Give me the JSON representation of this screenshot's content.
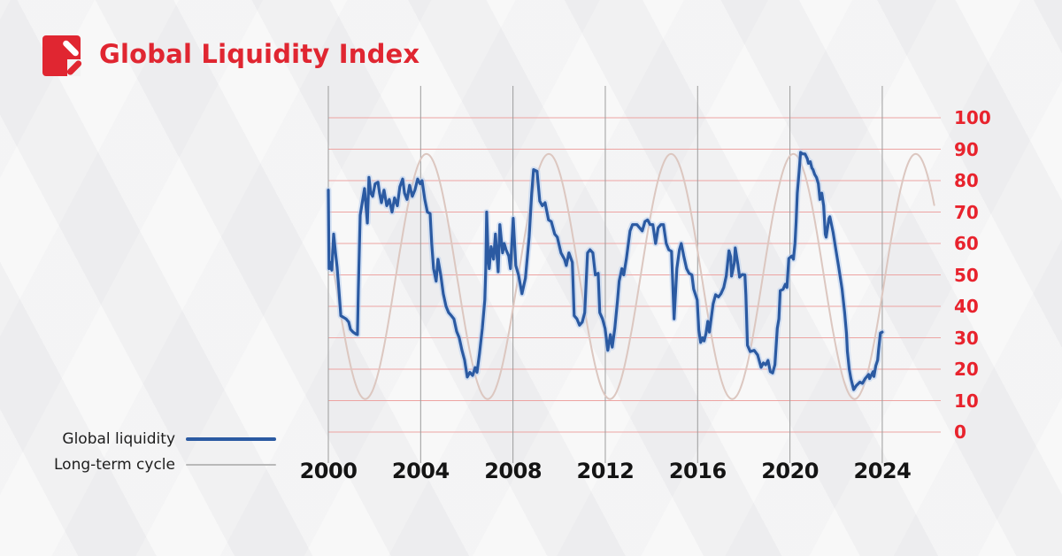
{
  "header": {
    "title": "Global Liquidity Index",
    "logo": "red-square-with-slash-logo"
  },
  "colors": {
    "accent_red": "#e02631",
    "axis_label_red": "#e8232d",
    "grid_red": "#eda4a2",
    "grid_gray": "#9c9c9c",
    "liquidity_blue": "#2b5aa2",
    "liquidity_halo": "#b6cdf0",
    "cycle_tan": "#dcc7c0",
    "legend_gray": "#b9b9b9",
    "text_dark": "#1d1d1d",
    "background": "#f1f1f2"
  },
  "legend": {
    "items": [
      {
        "label": "Global liquidity",
        "series_key": "global_liquidity",
        "line_color": "#2b5aa2",
        "line_thickness": 4
      },
      {
        "label": "Long-term cycle",
        "series_key": "long_term_cycle",
        "line_color": "#b9b9b9",
        "line_thickness": 2
      }
    ]
  },
  "chart_data": {
    "type": "line",
    "title": "Global Liquidity Index",
    "xlabel": "",
    "ylabel": "",
    "x_axis": {
      "ticks": [
        2000,
        2004,
        2008,
        2012,
        2016,
        2020,
        2024
      ],
      "range": [
        2000,
        2026.4
      ],
      "grid": true,
      "grid_color": "#9c9c9c"
    },
    "y_axis": {
      "ticks": [
        0,
        10,
        20,
        30,
        40,
        50,
        60,
        70,
        80,
        90,
        100
      ],
      "range": [
        0,
        100
      ],
      "side": "right",
      "grid": true,
      "grid_color": "#eda4a2",
      "label_color": "#e8232d"
    },
    "legend_position": "bottom-left",
    "series": [
      {
        "name": "Global liquidity",
        "key": "global_liquidity",
        "color": "#2b5aa2",
        "points": [
          [
            2000.0,
            77
          ],
          [
            2000.03,
            52
          ],
          [
            2000.08,
            54
          ],
          [
            2000.15,
            51.5
          ],
          [
            2000.23,
            63
          ],
          [
            2000.31,
            57
          ],
          [
            2000.38,
            52.5
          ],
          [
            2000.46,
            45
          ],
          [
            2000.54,
            37
          ],
          [
            2000.65,
            36.5
          ],
          [
            2000.77,
            36
          ],
          [
            2000.88,
            35
          ],
          [
            2000.96,
            32.7
          ],
          [
            2001.07,
            31.8
          ],
          [
            2001.19,
            31.2
          ],
          [
            2001.26,
            31
          ],
          [
            2001.3,
            45
          ],
          [
            2001.38,
            69
          ],
          [
            2001.49,
            74
          ],
          [
            2001.57,
            77.5
          ],
          [
            2001.69,
            66.5
          ],
          [
            2001.76,
            81
          ],
          [
            2001.84,
            76
          ],
          [
            2001.92,
            75
          ],
          [
            2002.03,
            79
          ],
          [
            2002.15,
            79.5
          ],
          [
            2002.22,
            76
          ],
          [
            2002.3,
            73
          ],
          [
            2002.41,
            77
          ],
          [
            2002.53,
            72
          ],
          [
            2002.64,
            74
          ],
          [
            2002.76,
            70
          ],
          [
            2002.87,
            74.5
          ],
          [
            2002.99,
            72
          ],
          [
            2003.1,
            78
          ],
          [
            2003.22,
            80.5
          ],
          [
            2003.3,
            76
          ],
          [
            2003.41,
            74
          ],
          [
            2003.52,
            78.5
          ],
          [
            2003.64,
            75
          ],
          [
            2003.75,
            77
          ],
          [
            2003.87,
            80.5
          ],
          [
            2003.98,
            79
          ],
          [
            2004.06,
            80
          ],
          [
            2004.18,
            74
          ],
          [
            2004.29,
            70
          ],
          [
            2004.41,
            69.5
          ],
          [
            2004.48,
            60
          ],
          [
            2004.56,
            52
          ],
          [
            2004.67,
            48
          ],
          [
            2004.75,
            55
          ],
          [
            2004.87,
            50
          ],
          [
            2004.98,
            44
          ],
          [
            2005.1,
            40
          ],
          [
            2005.21,
            38
          ],
          [
            2005.33,
            37
          ],
          [
            2005.44,
            36
          ],
          [
            2005.56,
            32
          ],
          [
            2005.67,
            30
          ],
          [
            2005.79,
            26
          ],
          [
            2005.9,
            23
          ],
          [
            2006.02,
            17.5
          ],
          [
            2006.13,
            19
          ],
          [
            2006.25,
            18
          ],
          [
            2006.36,
            20.5
          ],
          [
            2006.44,
            19
          ],
          [
            2006.55,
            25
          ],
          [
            2006.67,
            33
          ],
          [
            2006.78,
            42
          ],
          [
            2006.82,
            52
          ],
          [
            2006.86,
            70
          ],
          [
            2006.93,
            55
          ],
          [
            2006.97,
            52
          ],
          [
            2007.05,
            59
          ],
          [
            2007.16,
            55
          ],
          [
            2007.24,
            63
          ],
          [
            2007.36,
            51
          ],
          [
            2007.43,
            66
          ],
          [
            2007.55,
            57
          ],
          [
            2007.62,
            60
          ],
          [
            2007.7,
            58
          ],
          [
            2007.82,
            56
          ],
          [
            2007.89,
            52
          ],
          [
            2008.01,
            68
          ],
          [
            2008.12,
            53
          ],
          [
            2008.24,
            50
          ],
          [
            2008.39,
            44
          ],
          [
            2008.54,
            49
          ],
          [
            2008.7,
            62
          ],
          [
            2008.81,
            76
          ],
          [
            2008.89,
            83.5
          ],
          [
            2009.04,
            83
          ],
          [
            2009.16,
            73.5
          ],
          [
            2009.27,
            72
          ],
          [
            2009.39,
            73
          ],
          [
            2009.54,
            67.5
          ],
          [
            2009.66,
            67
          ],
          [
            2009.81,
            63
          ],
          [
            2009.92,
            62
          ],
          [
            2010.08,
            57
          ],
          [
            2010.23,
            55
          ],
          [
            2010.31,
            53
          ],
          [
            2010.42,
            57
          ],
          [
            2010.57,
            54
          ],
          [
            2010.65,
            37
          ],
          [
            2010.77,
            36
          ],
          [
            2010.88,
            34
          ],
          [
            2011.0,
            35
          ],
          [
            2011.11,
            38
          ],
          [
            2011.23,
            57
          ],
          [
            2011.34,
            58
          ],
          [
            2011.46,
            57
          ],
          [
            2011.57,
            50
          ],
          [
            2011.69,
            50.5
          ],
          [
            2011.76,
            38
          ],
          [
            2011.88,
            36
          ],
          [
            2011.99,
            33
          ],
          [
            2012.11,
            26
          ],
          [
            2012.22,
            31
          ],
          [
            2012.3,
            27
          ],
          [
            2012.41,
            33
          ],
          [
            2012.53,
            42
          ],
          [
            2012.6,
            48
          ],
          [
            2012.72,
            52
          ],
          [
            2012.8,
            50
          ],
          [
            2012.91,
            55
          ],
          [
            2013.07,
            64
          ],
          [
            2013.18,
            66
          ],
          [
            2013.37,
            66
          ],
          [
            2013.6,
            64
          ],
          [
            2013.72,
            67
          ],
          [
            2013.83,
            67.5
          ],
          [
            2013.94,
            66
          ],
          [
            2014.06,
            66
          ],
          [
            2014.18,
            60
          ],
          [
            2014.29,
            65
          ],
          [
            2014.41,
            66
          ],
          [
            2014.52,
            66
          ],
          [
            2014.64,
            60
          ],
          [
            2014.75,
            58
          ],
          [
            2014.87,
            57.5
          ],
          [
            2014.98,
            36
          ],
          [
            2015.1,
            52
          ],
          [
            2015.21,
            58
          ],
          [
            2015.29,
            60
          ],
          [
            2015.4,
            56
          ],
          [
            2015.52,
            52
          ],
          [
            2015.63,
            50.5
          ],
          [
            2015.75,
            50
          ],
          [
            2015.83,
            45.5
          ],
          [
            2015.98,
            42
          ],
          [
            2016.05,
            32.5
          ],
          [
            2016.13,
            28.5
          ],
          [
            2016.21,
            30
          ],
          [
            2016.28,
            29
          ],
          [
            2016.36,
            31.3
          ],
          [
            2016.44,
            35.2
          ],
          [
            2016.51,
            31.8
          ],
          [
            2016.67,
            40.8
          ],
          [
            2016.78,
            43.7
          ],
          [
            2016.9,
            43
          ],
          [
            2017.01,
            44
          ],
          [
            2017.13,
            46
          ],
          [
            2017.24,
            49.6
          ],
          [
            2017.36,
            57.7
          ],
          [
            2017.43,
            55.8
          ],
          [
            2017.47,
            49.6
          ],
          [
            2017.59,
            53.8
          ],
          [
            2017.63,
            58.6
          ],
          [
            2017.74,
            53.5
          ],
          [
            2017.82,
            49.3
          ],
          [
            2017.93,
            50.1
          ],
          [
            2018.05,
            50
          ],
          [
            2018.09,
            43.7
          ],
          [
            2018.16,
            27.6
          ],
          [
            2018.28,
            25.6
          ],
          [
            2018.45,
            26
          ],
          [
            2018.6,
            24.5
          ],
          [
            2018.75,
            20.6
          ],
          [
            2018.85,
            22
          ],
          [
            2018.95,
            21.4
          ],
          [
            2019.05,
            22.8
          ],
          [
            2019.15,
            19.2
          ],
          [
            2019.25,
            18.8
          ],
          [
            2019.35,
            21.4
          ],
          [
            2019.45,
            33
          ],
          [
            2019.52,
            36
          ],
          [
            2019.58,
            45
          ],
          [
            2019.7,
            45.4
          ],
          [
            2019.8,
            47
          ],
          [
            2019.87,
            46
          ],
          [
            2019.95,
            55.2
          ],
          [
            2020.08,
            56
          ],
          [
            2020.15,
            55
          ],
          [
            2020.22,
            60
          ],
          [
            2020.27,
            67
          ],
          [
            2020.32,
            76
          ],
          [
            2020.4,
            83
          ],
          [
            2020.46,
            89
          ],
          [
            2020.55,
            88.5
          ],
          [
            2020.65,
            88.5
          ],
          [
            2020.75,
            87
          ],
          [
            2020.8,
            85.5
          ],
          [
            2020.88,
            86
          ],
          [
            2020.95,
            84
          ],
          [
            2021.0,
            83.5
          ],
          [
            2021.07,
            82
          ],
          [
            2021.15,
            81
          ],
          [
            2021.23,
            79
          ],
          [
            2021.3,
            74
          ],
          [
            2021.38,
            76
          ],
          [
            2021.46,
            72
          ],
          [
            2021.53,
            63
          ],
          [
            2021.57,
            62
          ],
          [
            2021.69,
            68
          ],
          [
            2021.73,
            68.5
          ],
          [
            2021.87,
            63.5
          ],
          [
            2021.99,
            58
          ],
          [
            2022.1,
            53
          ],
          [
            2022.26,
            45.5
          ],
          [
            2022.37,
            38
          ],
          [
            2022.45,
            31.3
          ],
          [
            2022.49,
            25.7
          ],
          [
            2022.57,
            20
          ],
          [
            2022.64,
            17
          ],
          [
            2022.76,
            13.5
          ],
          [
            2022.87,
            14.7
          ],
          [
            2023.03,
            15.9
          ],
          [
            2023.14,
            15.5
          ],
          [
            2023.26,
            17
          ],
          [
            2023.41,
            18.3
          ],
          [
            2023.45,
            17
          ],
          [
            2023.6,
            19.2
          ],
          [
            2023.64,
            17.7
          ],
          [
            2023.72,
            21.1
          ],
          [
            2023.8,
            22.9
          ],
          [
            2023.84,
            26
          ],
          [
            2023.92,
            31.5
          ],
          [
            2024.0,
            31.8
          ]
        ]
      },
      {
        "name": "Long-term cycle",
        "key": "long_term_cycle",
        "color": "#dcc7c0",
        "model": {
          "shape": "sinusoid",
          "midline": 49.5,
          "amplitude": 39,
          "period_years": 5.3,
          "peak_year": 2020.15,
          "peak_years": [
            2004.25,
            2009.55,
            2014.85,
            2020.15,
            2025.45
          ],
          "trough_years": [
            2001.6,
            2006.9,
            2012.2,
            2017.5,
            2022.8
          ],
          "max_value": 88.5,
          "min_value": 10.5,
          "x_range": [
            2000,
            2026.25
          ]
        }
      }
    ]
  }
}
